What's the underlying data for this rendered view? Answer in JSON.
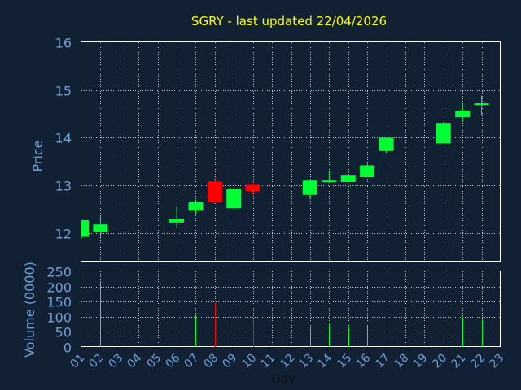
{
  "colors": {
    "background": "#112033",
    "title": "#ffff00",
    "axis_text": "#6f9fd6",
    "grid": "#ffffff",
    "up": "#00ff33",
    "down": "#ff0000"
  },
  "chart_data": [
    {
      "type": "candlestick",
      "title": "SGRY - last updated 22/04/2026",
      "ylabel": "Price",
      "ylim": [
        11.4,
        16
      ],
      "yticks": [
        "12",
        "13",
        "14",
        "15",
        "16"
      ],
      "grid": true,
      "candles": [
        {
          "day": "01",
          "open": 11.92,
          "high": 12.27,
          "low": 11.88,
          "close": 12.27,
          "up": true
        },
        {
          "day": "02",
          "open": 12.03,
          "high": 12.35,
          "low": 11.88,
          "close": 12.18,
          "up": true
        },
        {
          "day": "06",
          "open": 12.22,
          "high": 12.57,
          "low": 12.1,
          "close": 12.3,
          "up": true
        },
        {
          "day": "07",
          "open": 12.47,
          "high": 12.7,
          "low": 12.4,
          "close": 12.65,
          "up": true
        },
        {
          "day": "08",
          "open": 13.08,
          "high": 13.17,
          "low": 12.62,
          "close": 12.65,
          "up": false
        },
        {
          "day": "09",
          "open": 12.52,
          "high": 12.95,
          "low": 12.5,
          "close": 12.93,
          "up": true
        },
        {
          "day": "10",
          "open": 13.01,
          "high": 13.08,
          "low": 12.8,
          "close": 12.88,
          "up": false
        },
        {
          "day": "13",
          "open": 12.8,
          "high": 13.12,
          "low": 12.72,
          "close": 13.1,
          "up": true
        },
        {
          "day": "14",
          "open": 13.07,
          "high": 13.3,
          "low": 13.05,
          "close": 13.1,
          "up": true
        },
        {
          "day": "15",
          "open": 13.07,
          "high": 13.25,
          "low": 12.85,
          "close": 13.22,
          "up": true
        },
        {
          "day": "16",
          "open": 13.17,
          "high": 13.45,
          "low": 13.17,
          "close": 13.42,
          "up": true
        },
        {
          "day": "17",
          "open": 13.72,
          "high": 14.0,
          "low": 13.68,
          "close": 14.0,
          "up": true
        },
        {
          "day": "20",
          "open": 13.88,
          "high": 14.33,
          "low": 13.88,
          "close": 14.31,
          "up": true
        },
        {
          "day": "21",
          "open": 14.43,
          "high": 14.72,
          "low": 14.33,
          "close": 14.57,
          "up": true
        },
        {
          "day": "22",
          "open": 14.7,
          "high": 14.88,
          "low": 14.47,
          "close": 14.72,
          "up": true
        }
      ]
    },
    {
      "type": "bar",
      "xlabel": "Day",
      "ylabel": "Volume (0000)",
      "ylim": [
        0,
        250
      ],
      "yticks": [
        "0",
        "50",
        "100",
        "150",
        "200",
        "250"
      ],
      "categories": [
        "01",
        "02",
        "03",
        "04",
        "05",
        "06",
        "07",
        "08",
        "09",
        "10",
        "11",
        "12",
        "13",
        "14",
        "15",
        "16",
        "17",
        "18",
        "19",
        "20",
        "21",
        "22",
        "23"
      ],
      "values": [
        0,
        218,
        0,
        0,
        0,
        100,
        107,
        147,
        87,
        88,
        0,
        0,
        68,
        77,
        68,
        72,
        125,
        0,
        0,
        88,
        100,
        92,
        0
      ],
      "up": [
        true,
        true,
        true,
        true,
        true,
        true,
        true,
        false,
        true,
        false,
        true,
        true,
        true,
        true,
        true,
        true,
        true,
        true,
        true,
        true,
        true,
        true,
        true
      ]
    }
  ]
}
